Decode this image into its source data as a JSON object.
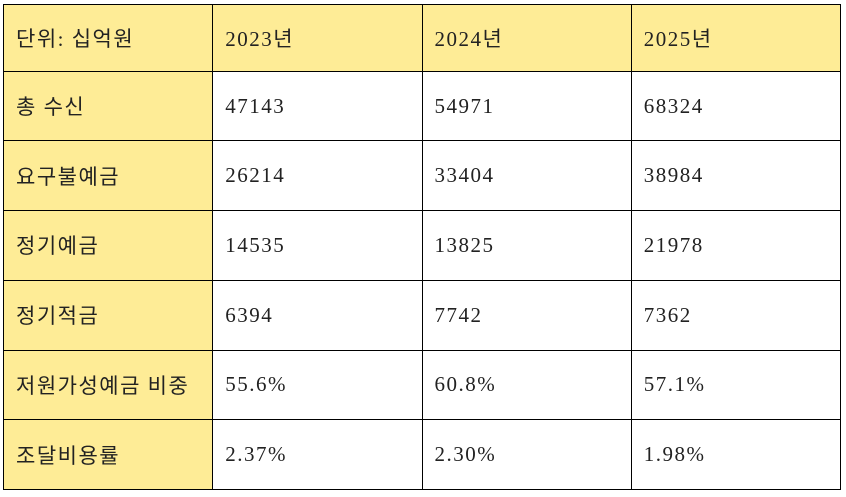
{
  "table": {
    "unit_label": "단위: 십억원",
    "columns": [
      "2023년",
      "2024년",
      "2025년"
    ],
    "rows": [
      {
        "label": "총 수신",
        "values": [
          "47143",
          "54971",
          "68324"
        ]
      },
      {
        "label": "요구불예금",
        "values": [
          "26214",
          "33404",
          "38984"
        ]
      },
      {
        "label": "정기예금",
        "values": [
          "14535",
          "13825",
          "21978"
        ]
      },
      {
        "label": "정기적금",
        "values": [
          "6394",
          "7742",
          "7362"
        ]
      },
      {
        "label": "저원가성예금 비중",
        "values": [
          "55.6%",
          "60.8%",
          "57.1%"
        ]
      },
      {
        "label": "조달비용률",
        "values": [
          "2.37%",
          "2.30%",
          "1.98%"
        ]
      }
    ],
    "colors": {
      "highlight_bg": "#FEEC96",
      "border": "#000000",
      "text": "#222222",
      "background": "#FFFFFF"
    }
  }
}
